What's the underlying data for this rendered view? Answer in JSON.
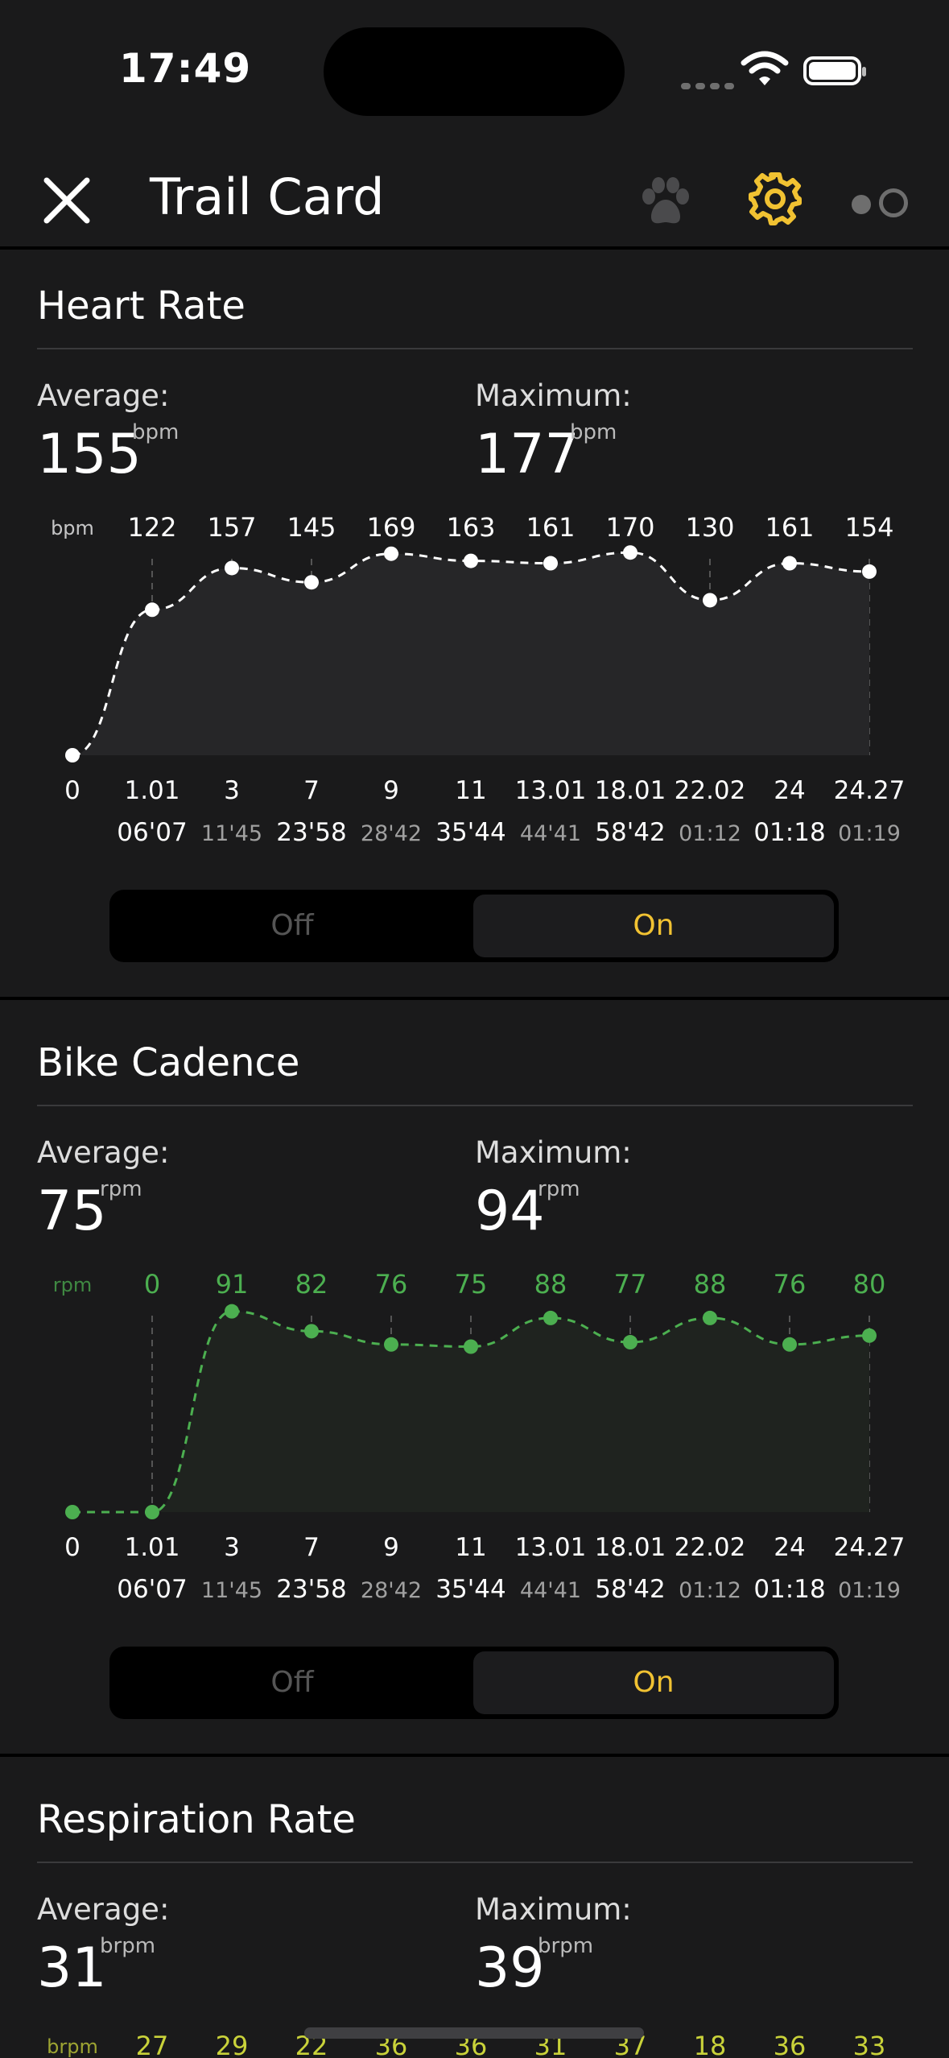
{
  "status_bar": {
    "time": "17:49"
  },
  "nav": {
    "title": "Trail Card"
  },
  "sections": [
    {
      "title": "Heart Rate",
      "avg_label": "Average:",
      "avg_value": "155",
      "avg_unit": "bpm",
      "max_label": "Maximum:",
      "max_value": "177",
      "max_unit": "bpm",
      "toggle": {
        "off_label": "Off",
        "on_label": "On",
        "selected": "On"
      }
    },
    {
      "title": "Bike Cadence",
      "avg_label": "Average:",
      "avg_value": "75",
      "avg_unit": "rpm",
      "max_label": "Maximum:",
      "max_value": "94",
      "max_unit": "rpm",
      "toggle": {
        "off_label": "Off",
        "on_label": "On",
        "selected": "On"
      }
    },
    {
      "title": "Respiration Rate",
      "avg_label": "Average:",
      "avg_value": "31",
      "avg_unit": "brpm",
      "max_label": "Maximum:",
      "max_value": "39",
      "max_unit": "brpm"
    }
  ],
  "colors": {
    "background": "#1a1a1b",
    "accent_yellow": "#f1c232",
    "cadence_green": "#4caf50",
    "respiration_yellow": "#c9d23a",
    "heart_white": "#ffffff"
  },
  "chart_data": [
    {
      "type": "line",
      "unit": "bpm",
      "x": [
        "0",
        "1.01",
        "3",
        "7",
        "9",
        "11",
        "13.01",
        "18.01",
        "22.02",
        "24",
        "24.27"
      ],
      "times": [
        "",
        "06'07",
        "11'45",
        "23'58",
        "28'42",
        "35'44",
        "44'41",
        "58'42",
        "01:12",
        "01:18",
        "01:19"
      ],
      "top_labels": [
        "",
        "122",
        "157",
        "145",
        "169",
        "163",
        "161",
        "170",
        "130",
        "161",
        "154"
      ],
      "series": [
        {
          "values": [
            0,
            122,
            157,
            145,
            169,
            163,
            161,
            170,
            130,
            161,
            154
          ]
        }
      ],
      "color": "#ffffff",
      "ylim": [
        0,
        185
      ]
    },
    {
      "type": "line",
      "unit": "rpm",
      "x": [
        "0",
        "1.01",
        "3",
        "7",
        "9",
        "11",
        "13.01",
        "18.01",
        "22.02",
        "24",
        "24.27"
      ],
      "times": [
        "",
        "06'07",
        "11'45",
        "23'58",
        "28'42",
        "35'44",
        "44'41",
        "58'42",
        "01:12",
        "01:18",
        "01:19"
      ],
      "top_labels": [
        "",
        "0",
        "91",
        "82",
        "76",
        "75",
        "88",
        "77",
        "88",
        "76",
        "80"
      ],
      "series": [
        {
          "values": [
            0,
            0,
            91,
            82,
            76,
            75,
            88,
            77,
            88,
            76,
            80
          ]
        }
      ],
      "color": "#4caf50",
      "ylim": [
        0,
        100
      ]
    },
    {
      "type": "line",
      "unit": "brpm",
      "top_labels": [
        "27",
        "29",
        "22",
        "36",
        "36",
        "31",
        "37",
        "18",
        "36",
        "33"
      ],
      "color": "#c9d23a"
    }
  ]
}
